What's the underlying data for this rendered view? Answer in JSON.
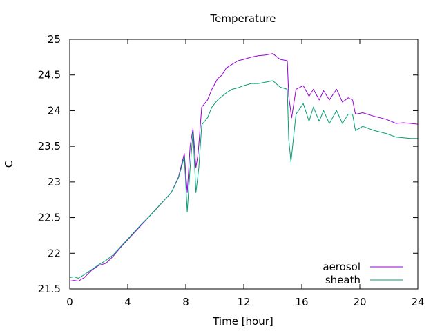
{
  "chart_data": {
    "type": "line",
    "title": "Temperature",
    "xlabel": "Time [hour]",
    "ylabel": "C",
    "xlim": [
      0,
      24
    ],
    "ylim": [
      21.5,
      25
    ],
    "xticks": [
      0,
      4,
      8,
      12,
      16,
      20,
      24
    ],
    "xtick_labels": [
      "0",
      "4",
      "8",
      "12",
      "16",
      "20",
      "24"
    ],
    "yticks": [
      21.5,
      22,
      22.5,
      23,
      23.5,
      24,
      24.5,
      25
    ],
    "ytick_labels": [
      "21.5",
      "22",
      "22.5",
      "23",
      "23.5",
      "24",
      "24.5",
      "25"
    ],
    "grid": false,
    "legend_position": "bottom-right",
    "series": [
      {
        "name": "aerosol",
        "color": "#9400d3",
        "points": [
          [
            0,
            21.61
          ],
          [
            0.3,
            21.62
          ],
          [
            0.6,
            21.61
          ],
          [
            1,
            21.66
          ],
          [
            1.5,
            21.76
          ],
          [
            2,
            21.83
          ],
          [
            2.5,
            21.86
          ],
          [
            3,
            21.96
          ],
          [
            3.5,
            22.08
          ],
          [
            4,
            22.19
          ],
          [
            4.5,
            22.3
          ],
          [
            5,
            22.41
          ],
          [
            5.5,
            22.52
          ],
          [
            6,
            22.63
          ],
          [
            6.5,
            22.74
          ],
          [
            7,
            22.85
          ],
          [
            7.5,
            23.07
          ],
          [
            7.9,
            23.4
          ],
          [
            8.1,
            22.85
          ],
          [
            8.3,
            23.5
          ],
          [
            8.5,
            23.75
          ],
          [
            8.7,
            23.2
          ],
          [
            8.85,
            23.4
          ],
          [
            9.1,
            24.05
          ],
          [
            9.5,
            24.15
          ],
          [
            9.8,
            24.3
          ],
          [
            10.2,
            24.45
          ],
          [
            10.5,
            24.5
          ],
          [
            10.8,
            24.6
          ],
          [
            11.2,
            24.65
          ],
          [
            11.6,
            24.7
          ],
          [
            12,
            24.72
          ],
          [
            12.5,
            24.75
          ],
          [
            13,
            24.77
          ],
          [
            13.5,
            24.78
          ],
          [
            14,
            24.8
          ],
          [
            14.5,
            24.72
          ],
          [
            15,
            24.7
          ],
          [
            15.1,
            24.2
          ],
          [
            15.3,
            23.9
          ],
          [
            15.6,
            24.3
          ],
          [
            16.1,
            24.35
          ],
          [
            16.5,
            24.2
          ],
          [
            16.8,
            24.3
          ],
          [
            17.2,
            24.15
          ],
          [
            17.5,
            24.28
          ],
          [
            17.9,
            24.15
          ],
          [
            18.4,
            24.3
          ],
          [
            18.8,
            24.12
          ],
          [
            19.2,
            24.18
          ],
          [
            19.5,
            24.15
          ],
          [
            19.7,
            23.95
          ],
          [
            20.2,
            23.97
          ],
          [
            21,
            23.92
          ],
          [
            21.8,
            23.88
          ],
          [
            22.5,
            23.82
          ],
          [
            23,
            23.83
          ],
          [
            23.5,
            23.82
          ],
          [
            24,
            23.81
          ]
        ]
      },
      {
        "name": "sheath",
        "color": "#009e73",
        "points": [
          [
            0,
            21.66
          ],
          [
            0.3,
            21.67
          ],
          [
            0.6,
            21.65
          ],
          [
            1,
            21.7
          ],
          [
            1.5,
            21.77
          ],
          [
            2,
            21.84
          ],
          [
            2.5,
            21.9
          ],
          [
            3,
            21.98
          ],
          [
            3.5,
            22.09
          ],
          [
            4,
            22.2
          ],
          [
            4.5,
            22.31
          ],
          [
            5,
            22.42
          ],
          [
            5.5,
            22.52
          ],
          [
            6,
            22.63
          ],
          [
            6.5,
            22.74
          ],
          [
            7,
            22.85
          ],
          [
            7.5,
            23.06
          ],
          [
            7.9,
            23.35
          ],
          [
            8.1,
            22.58
          ],
          [
            8.3,
            23.2
          ],
          [
            8.5,
            23.7
          ],
          [
            8.7,
            22.85
          ],
          [
            8.9,
            23.2
          ],
          [
            9.1,
            23.8
          ],
          [
            9.5,
            23.9
          ],
          [
            9.8,
            24.05
          ],
          [
            10.2,
            24.15
          ],
          [
            10.5,
            24.2
          ],
          [
            10.8,
            24.25
          ],
          [
            11.2,
            24.3
          ],
          [
            11.6,
            24.32
          ],
          [
            12,
            24.35
          ],
          [
            12.5,
            24.38
          ],
          [
            13,
            24.38
          ],
          [
            13.5,
            24.4
          ],
          [
            14,
            24.42
          ],
          [
            14.5,
            24.33
          ],
          [
            15,
            24.3
          ],
          [
            15.1,
            23.6
          ],
          [
            15.25,
            23.28
          ],
          [
            15.6,
            23.95
          ],
          [
            16.1,
            24.1
          ],
          [
            16.5,
            23.85
          ],
          [
            16.8,
            24.05
          ],
          [
            17.2,
            23.85
          ],
          [
            17.5,
            24.0
          ],
          [
            17.9,
            23.82
          ],
          [
            18.4,
            24.0
          ],
          [
            18.8,
            23.82
          ],
          [
            19.2,
            23.95
          ],
          [
            19.5,
            23.95
          ],
          [
            19.7,
            23.72
          ],
          [
            20.2,
            23.78
          ],
          [
            21,
            23.72
          ],
          [
            21.8,
            23.68
          ],
          [
            22.5,
            23.63
          ],
          [
            23,
            23.62
          ],
          [
            23.5,
            23.61
          ],
          [
            24,
            23.61
          ]
        ]
      }
    ]
  }
}
